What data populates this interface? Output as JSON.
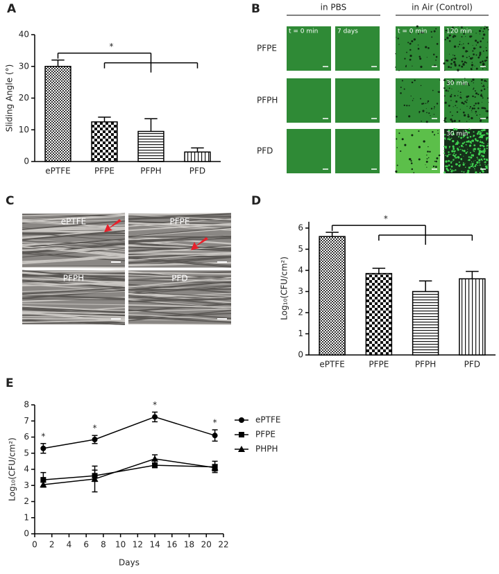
{
  "panel_labels": [
    "A",
    "B",
    "C",
    "D",
    "E"
  ],
  "chart_data": [
    {
      "type": "bar",
      "y_label": "Sliding Angle (°)",
      "categories": [
        "ePTFE",
        "PFPE",
        "PFPH",
        "PFD"
      ],
      "values": [
        30,
        12.5,
        9.5,
        3
      ],
      "errors": [
        2,
        1.5,
        4,
        1.3
      ],
      "patterns": [
        "checker-fine",
        "checker",
        "horizontal",
        "vertical"
      ],
      "ylim": [
        0,
        40
      ],
      "yticks": [
        0,
        10,
        20,
        30,
        40
      ],
      "annotation": "*"
    },
    {
      "type": "bar",
      "y_label": "Log₁₀(CFU/cm²)",
      "categories": [
        "ePTFE",
        "PFPE",
        "PFPH",
        "PFD"
      ],
      "values": [
        5.6,
        3.85,
        3,
        3.6
      ],
      "errors": [
        0.2,
        0.25,
        0.5,
        0.35
      ],
      "patterns": [
        "checker-fine",
        "checker",
        "horizontal",
        "vertical"
      ],
      "ylim": [
        0,
        6.3
      ],
      "yticks": [
        0,
        1,
        2,
        3,
        4,
        5,
        6
      ],
      "annotation": "*"
    },
    {
      "type": "line",
      "x_label": "Days",
      "y_label": "Log₁₀(CFU/cm²)",
      "x": [
        1,
        7,
        14,
        21
      ],
      "series": [
        {
          "name": "ePTFE",
          "marker": "circle",
          "color": "#000000",
          "values": [
            5.3,
            5.85,
            7.25,
            6.1
          ],
          "errors": [
            0.3,
            0.25,
            0.3,
            0.35
          ]
        },
        {
          "name": "PFPE",
          "marker": "square",
          "color": "#000000",
          "values": [
            3.35,
            3.6,
            4.25,
            4.15
          ],
          "errors": [
            0.45,
            0.35,
            0.15,
            0.35
          ]
        },
        {
          "name": "PHPH",
          "marker": "triangle",
          "color": "#000000",
          "values": [
            3.05,
            3.4,
            4.65,
            4.1
          ],
          "errors": [
            0.15,
            0.8,
            0.25,
            0.2
          ]
        }
      ],
      "xlim": [
        0,
        22
      ],
      "xticks": [
        0,
        2,
        4,
        6,
        8,
        10,
        12,
        14,
        16,
        18,
        20,
        22
      ],
      "ylim": [
        0,
        8
      ],
      "yticks": [
        0,
        1,
        2,
        3,
        4,
        5,
        6,
        7,
        8
      ],
      "annotation": "*"
    }
  ],
  "panel_b": {
    "column_headers": [
      "in PBS",
      "in Air (Control)"
    ],
    "row_labels": [
      "PFPE",
      "PFPH",
      "PFD"
    ],
    "image_labels": [
      "t = 0 min",
      "7 days",
      "t = 0 min",
      "120 min",
      "30 min",
      "30 min"
    ]
  },
  "panel_c": {
    "image_labels": [
      "ePTFE",
      "PFPE",
      "PFPH",
      "PFD"
    ]
  }
}
